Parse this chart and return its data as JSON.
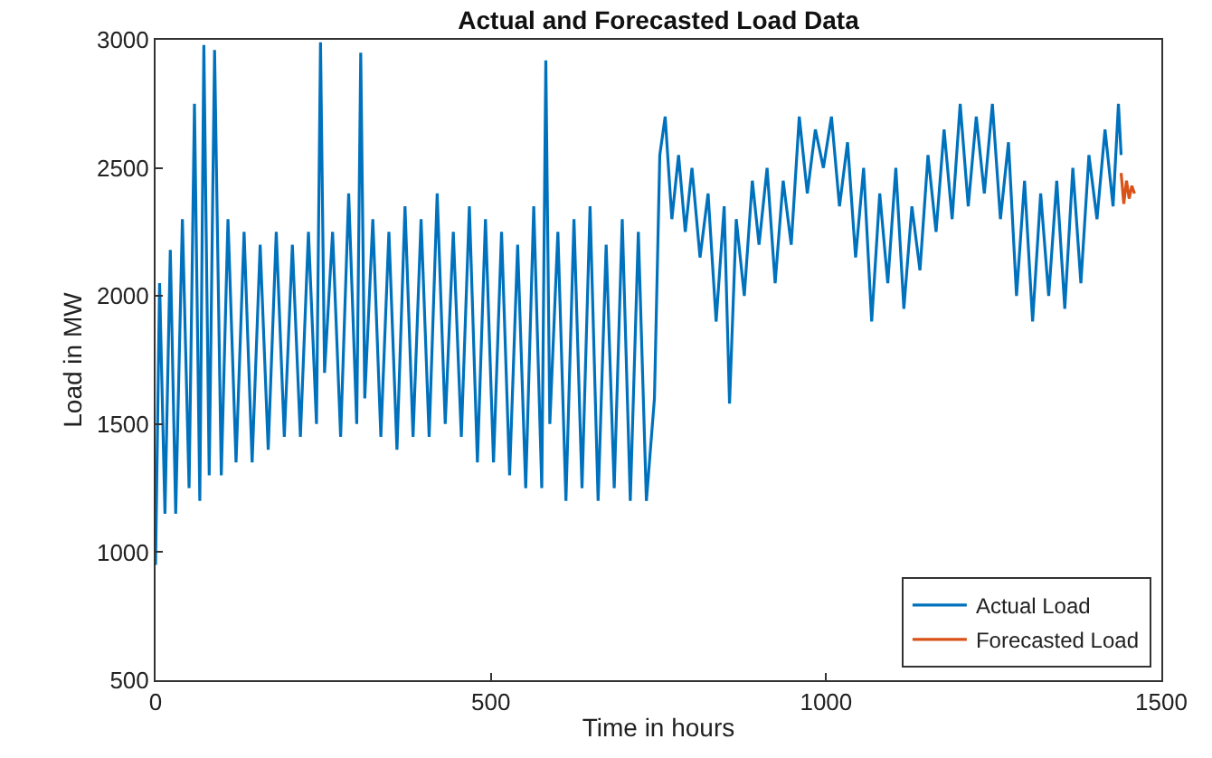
{
  "chart_data": {
    "type": "line",
    "title": "Actual and Forecasted Load Data",
    "xlabel": "Time in hours",
    "ylabel": "Load in MW",
    "xlim": [
      0,
      1500
    ],
    "ylim": [
      500,
      3000
    ],
    "xticks": [
      0,
      500,
      1000,
      1500
    ],
    "yticks": [
      500,
      1000,
      1500,
      2000,
      2500,
      3000
    ],
    "legend": "bottom right",
    "marker": "none",
    "line_style": "solid",
    "series": [
      {
        "name": "Actual Load",
        "color": "#0072bd",
        "x": [
          0,
          6,
          14,
          22,
          30,
          40,
          50,
          58,
          66,
          72,
          80,
          88,
          98,
          108,
          120,
          132,
          144,
          156,
          168,
          180,
          192,
          204,
          216,
          228,
          240,
          246,
          252,
          264,
          276,
          288,
          300,
          306,
          312,
          324,
          336,
          348,
          360,
          372,
          384,
          396,
          408,
          420,
          432,
          444,
          456,
          468,
          480,
          492,
          504,
          516,
          528,
          540,
          552,
          564,
          576,
          582,
          588,
          600,
          612,
          624,
          636,
          648,
          660,
          672,
          684,
          696,
          708,
          720,
          732,
          744,
          752,
          760,
          770,
          780,
          790,
          800,
          812,
          824,
          836,
          848,
          856,
          866,
          878,
          890,
          900,
          912,
          924,
          936,
          948,
          960,
          972,
          984,
          996,
          1008,
          1020,
          1032,
          1044,
          1056,
          1068,
          1080,
          1092,
          1104,
          1116,
          1128,
          1140,
          1152,
          1164,
          1176,
          1188,
          1200,
          1212,
          1224,
          1236,
          1248,
          1260,
          1272,
          1284,
          1296,
          1308,
          1320,
          1332,
          1344,
          1356,
          1368,
          1380,
          1392,
          1404,
          1416,
          1428,
          1436,
          1440
        ],
        "values": [
          950,
          2050,
          1150,
          2180,
          1150,
          2300,
          1250,
          2750,
          1200,
          2980,
          1300,
          2960,
          1300,
          2300,
          1350,
          2250,
          1350,
          2200,
          1400,
          2250,
          1450,
          2200,
          1450,
          2250,
          1500,
          2990,
          1700,
          2250,
          1450,
          2400,
          1500,
          2950,
          1600,
          2300,
          1450,
          2250,
          1400,
          2350,
          1450,
          2300,
          1450,
          2400,
          1500,
          2250,
          1450,
          2350,
          1350,
          2300,
          1350,
          2250,
          1300,
          2200,
          1250,
          2350,
          1250,
          2920,
          1500,
          2250,
          1200,
          2300,
          1250,
          2350,
          1200,
          2200,
          1250,
          2300,
          1200,
          2250,
          1200,
          1600,
          2550,
          2700,
          2300,
          2550,
          2250,
          2500,
          2150,
          2400,
          1900,
          2350,
          1580,
          2300,
          2000,
          2450,
          2200,
          2500,
          2050,
          2450,
          2200,
          2700,
          2400,
          2650,
          2500,
          2700,
          2350,
          2600,
          2150,
          2500,
          1900,
          2400,
          2050,
          2500,
          1950,
          2350,
          2100,
          2550,
          2250,
          2650,
          2300,
          2750,
          2350,
          2700,
          2400,
          2750,
          2300,
          2600,
          2000,
          2450,
          1900,
          2400,
          2000,
          2450,
          1950,
          2500,
          2050,
          2550,
          2300,
          2650,
          2350,
          2750,
          2550
        ]
      },
      {
        "name": "Forecasted Load",
        "color": "#d95319",
        "x": [
          1440,
          1444,
          1448,
          1452,
          1456,
          1460
        ],
        "values": [
          2480,
          2360,
          2450,
          2380,
          2430,
          2400
        ]
      }
    ]
  }
}
